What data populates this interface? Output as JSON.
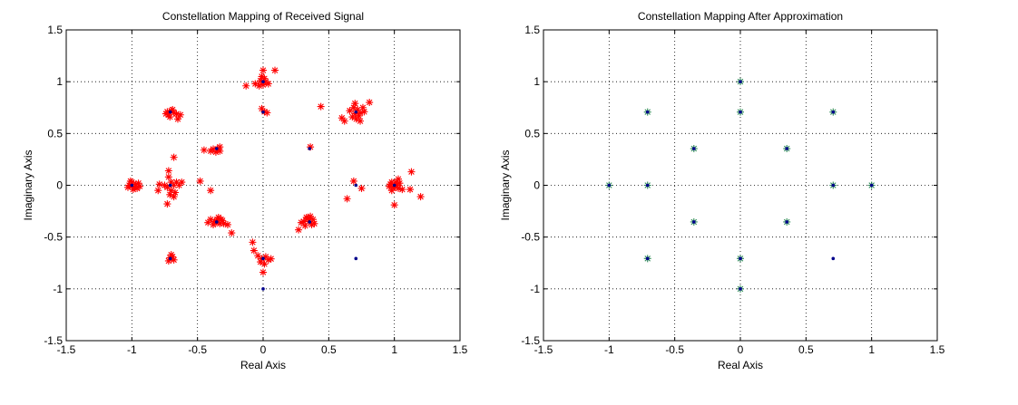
{
  "chart_data": [
    {
      "type": "scatter",
      "title": "Constellation Mapping of Received Signal",
      "xlabel": "Real Axis",
      "ylabel": "Imaginary Axis",
      "xlim": [
        -1.5,
        1.5
      ],
      "ylim": [
        -1.5,
        1.5
      ],
      "xticks": [
        -1.5,
        -1,
        -0.5,
        0,
        0.5,
        1,
        1.5
      ],
      "yticks": [
        -1.5,
        -1,
        -0.5,
        0,
        0.5,
        1,
        1.5
      ],
      "xtick_labels": [
        "-1.5",
        "-1",
        "-0.5",
        "0",
        "0.5",
        "1",
        "1.5"
      ],
      "ytick_labels": [
        "-1.5",
        "-1",
        "-0.5",
        "0",
        "0.5",
        "1",
        "1.5"
      ],
      "grid": "dotted",
      "series": [
        {
          "marker": "star",
          "color": "#ff0000",
          "points": [
            [
              -1.0,
              0.03
            ],
            [
              -0.98,
              -0.02
            ],
            [
              -1.02,
              0.0
            ],
            [
              -0.97,
              0.01
            ],
            [
              -0.99,
              -0.04
            ],
            [
              -0.95,
              0.02
            ],
            [
              -1.01,
              0.04
            ],
            [
              -0.96,
              -0.03
            ],
            [
              -1.0,
              -0.01
            ],
            [
              -0.94,
              -0.01
            ],
            [
              -1.03,
              -0.02
            ],
            [
              -0.73,
              0.71
            ],
            [
              -0.7,
              0.72
            ],
            [
              -0.72,
              0.68
            ],
            [
              -0.68,
              0.7
            ],
            [
              -0.71,
              0.66
            ],
            [
              -0.66,
              0.69
            ],
            [
              -0.63,
              0.68
            ],
            [
              -0.69,
              0.73
            ],
            [
              -0.65,
              0.64
            ],
            [
              -0.74,
              0.69
            ],
            [
              -0.72,
              0.08
            ],
            [
              -0.7,
              0.03
            ],
            [
              -0.68,
              0.0
            ],
            [
              -0.73,
              -0.02
            ],
            [
              -0.7,
              -0.05
            ],
            [
              -0.71,
              -0.09
            ],
            [
              -0.68,
              -0.11
            ],
            [
              -0.66,
              0.03
            ],
            [
              -0.64,
              0.0
            ],
            [
              -0.75,
              0.0
            ],
            [
              -0.67,
              -0.07
            ],
            [
              -0.62,
              0.03
            ],
            [
              -0.79,
              0.01
            ],
            [
              -0.8,
              -0.05
            ],
            [
              -0.73,
              -0.18
            ],
            [
              -0.68,
              0.27
            ],
            [
              -0.72,
              0.14
            ],
            [
              -0.71,
              -0.7
            ],
            [
              -0.68,
              -0.72
            ],
            [
              -0.7,
              -0.67
            ],
            [
              -0.72,
              -0.73
            ],
            [
              -0.69,
              -0.69
            ],
            [
              -0.45,
              0.34
            ],
            [
              -0.4,
              0.33
            ],
            [
              -0.35,
              0.35
            ],
            [
              -0.33,
              0.37
            ],
            [
              -0.36,
              0.32
            ],
            [
              -0.38,
              0.35
            ],
            [
              -0.33,
              0.33
            ],
            [
              -0.48,
              0.04
            ],
            [
              -0.4,
              -0.05
            ],
            [
              -0.4,
              -0.33
            ],
            [
              -0.37,
              -0.35
            ],
            [
              -0.35,
              -0.33
            ],
            [
              -0.33,
              -0.37
            ],
            [
              -0.31,
              -0.34
            ],
            [
              -0.38,
              -0.38
            ],
            [
              -0.34,
              -0.31
            ],
            [
              -0.36,
              -0.36
            ],
            [
              -0.3,
              -0.37
            ],
            [
              -0.32,
              -0.33
            ],
            [
              -0.27,
              -0.38
            ],
            [
              -0.42,
              -0.36
            ],
            [
              -0.24,
              -0.46
            ],
            [
              -0.06,
              0.98
            ],
            [
              -0.02,
              1.01
            ],
            [
              0.0,
              0.97
            ],
            [
              0.02,
              1.0
            ],
            [
              0.01,
              1.03
            ],
            [
              -0.03,
              0.96
            ],
            [
              0.04,
              0.98
            ],
            [
              -0.01,
              1.05
            ],
            [
              0.0,
              1.11
            ],
            [
              0.09,
              1.11
            ],
            [
              -0.13,
              0.96
            ],
            [
              -0.01,
              0.74
            ],
            [
              0.01,
              0.71
            ],
            [
              0.03,
              0.7
            ],
            [
              -0.08,
              -0.55
            ],
            [
              -0.07,
              -0.63
            ],
            [
              -0.04,
              -0.68
            ],
            [
              -0.01,
              -0.71
            ],
            [
              0.02,
              -0.69
            ],
            [
              0.04,
              -0.72
            ],
            [
              0.06,
              -0.71
            ],
            [
              0.01,
              -0.76
            ],
            [
              -0.02,
              -0.74
            ],
            [
              0.0,
              -0.84
            ],
            [
              0.33,
              -0.31
            ],
            [
              0.35,
              -0.35
            ],
            [
              0.31,
              -0.35
            ],
            [
              0.37,
              -0.38
            ],
            [
              0.34,
              -0.32
            ],
            [
              0.29,
              -0.36
            ],
            [
              0.38,
              -0.33
            ],
            [
              0.32,
              -0.39
            ],
            [
              0.36,
              -0.3
            ],
            [
              0.27,
              -0.43
            ],
            [
              0.39,
              -0.37
            ],
            [
              0.36,
              0.37
            ],
            [
              0.44,
              0.76
            ],
            [
              0.6,
              0.65
            ],
            [
              0.62,
              0.62
            ],
            [
              0.66,
              0.72
            ],
            [
              0.7,
              0.69
            ],
            [
              0.72,
              0.73
            ],
            [
              0.68,
              0.66
            ],
            [
              0.74,
              0.7
            ],
            [
              0.71,
              0.64
            ],
            [
              0.76,
              0.75
            ],
            [
              0.73,
              0.67
            ],
            [
              0.69,
              0.75
            ],
            [
              0.77,
              0.71
            ],
            [
              0.74,
              0.62
            ],
            [
              0.81,
              0.8
            ],
            [
              0.7,
              0.79
            ],
            [
              0.69,
              0.04
            ],
            [
              0.75,
              -0.03
            ],
            [
              0.64,
              -0.13
            ],
            [
              0.97,
              0.01
            ],
            [
              0.99,
              -0.02
            ],
            [
              1.01,
              0.03
            ],
            [
              1.0,
              -0.01
            ],
            [
              1.02,
              0.0
            ],
            [
              0.98,
              0.03
            ],
            [
              1.03,
              -0.03
            ],
            [
              0.96,
              -0.01
            ],
            [
              1.04,
              0.02
            ],
            [
              0.98,
              -0.05
            ],
            [
              1.0,
              -0.19
            ],
            [
              1.06,
              -0.04
            ],
            [
              1.12,
              -0.04
            ],
            [
              1.13,
              0.13
            ],
            [
              1.2,
              -0.11
            ],
            [
              1.03,
              0.06
            ]
          ]
        },
        {
          "marker": "dot",
          "color": "#00008b",
          "points": [
            [
              -1,
              0
            ],
            [
              -0.707,
              0.707
            ],
            [
              0,
              1
            ],
            [
              0.707,
              0.707
            ],
            [
              1,
              0
            ],
            [
              0.707,
              -0.707
            ],
            [
              0,
              -1
            ],
            [
              -0.707,
              -0.707
            ],
            [
              -0.707,
              0
            ],
            [
              0,
              0.707
            ],
            [
              0.707,
              0
            ],
            [
              0,
              -0.707
            ],
            [
              -0.354,
              0.354
            ],
            [
              0.354,
              0.354
            ],
            [
              -0.354,
              -0.354
            ],
            [
              0.354,
              -0.354
            ]
          ]
        }
      ]
    },
    {
      "type": "scatter",
      "title": "Constellation Mapping After Approximation",
      "xlabel": "Real Axis",
      "ylabel": "Imaginary Axis",
      "xlim": [
        -1.5,
        1.5
      ],
      "ylim": [
        -1.5,
        1.5
      ],
      "xticks": [
        -1.5,
        -1,
        -0.5,
        0,
        0.5,
        1,
        1.5
      ],
      "yticks": [
        -1.5,
        -1,
        -0.5,
        0,
        0.5,
        1,
        1.5
      ],
      "xtick_labels": [
        "-1.5",
        "-1",
        "-0.5",
        "0",
        "0.5",
        "1",
        "1.5"
      ],
      "ytick_labels": [
        "-1.5",
        "-1",
        "-0.5",
        "0",
        "0.5",
        "1",
        "1.5"
      ],
      "grid": "dotted",
      "series": [
        {
          "marker": "star",
          "color": "#2e8b57",
          "points": [
            [
              -1,
              0
            ],
            [
              -0.707,
              0.707
            ],
            [
              0,
              1
            ],
            [
              0.707,
              0.707
            ],
            [
              1,
              0
            ],
            [
              0,
              -1
            ],
            [
              -0.707,
              0
            ],
            [
              0,
              0.707
            ],
            [
              0.707,
              0
            ],
            [
              0,
              -0.707
            ],
            [
              -0.354,
              0.354
            ],
            [
              0.354,
              0.354
            ],
            [
              -0.354,
              -0.354
            ],
            [
              0.354,
              -0.354
            ],
            [
              -0.707,
              -0.707
            ]
          ]
        },
        {
          "marker": "dot",
          "color": "#00008b",
          "points": [
            [
              -1,
              0
            ],
            [
              -0.707,
              0.707
            ],
            [
              0,
              1
            ],
            [
              0.707,
              0.707
            ],
            [
              1,
              0
            ],
            [
              0.707,
              -0.707
            ],
            [
              0,
              -1
            ],
            [
              -0.707,
              -0.707
            ],
            [
              -0.707,
              0
            ],
            [
              0,
              0.707
            ],
            [
              0.707,
              0
            ],
            [
              0,
              -0.707
            ],
            [
              -0.354,
              0.354
            ],
            [
              0.354,
              0.354
            ],
            [
              -0.354,
              -0.354
            ],
            [
              0.354,
              -0.354
            ]
          ]
        }
      ]
    }
  ]
}
